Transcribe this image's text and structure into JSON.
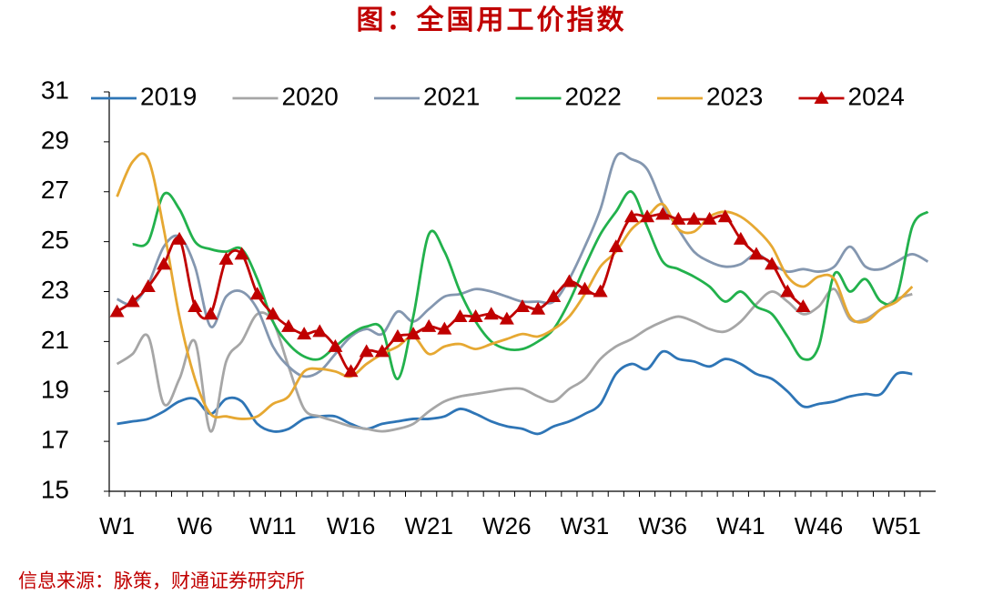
{
  "chart_data": {
    "type": "line",
    "title": "图：全国用工价指数",
    "source": "信息来源：脉策，财通证券研究所",
    "categories": [
      "W1",
      null,
      null,
      null,
      null,
      "W6",
      null,
      null,
      null,
      null,
      "W11",
      null,
      null,
      null,
      null,
      "W16",
      null,
      null,
      null,
      null,
      "W21",
      null,
      null,
      null,
      null,
      "W26",
      null,
      null,
      null,
      null,
      "W31",
      null,
      null,
      null,
      null,
      "W36",
      null,
      null,
      null,
      null,
      "W41",
      null,
      null,
      null,
      null,
      "W46",
      null,
      null,
      null,
      null,
      "W51",
      null,
      null
    ],
    "ylim": [
      15,
      31
    ],
    "yticks": [
      15,
      17,
      19,
      21,
      23,
      25,
      27,
      29,
      31
    ],
    "legend": "top",
    "series": [
      {
        "name": "2019",
        "color": "#2e75b6",
        "values": [
          17.7,
          17.8,
          17.9,
          18.2,
          18.6,
          18.7,
          18.1,
          18.7,
          18.6,
          17.7,
          17.4,
          17.5,
          17.9,
          18.0,
          18.0,
          17.7,
          17.5,
          17.7,
          17.8,
          17.9,
          17.9,
          18.0,
          18.3,
          18.1,
          17.8,
          17.6,
          17.5,
          17.3,
          17.6,
          17.8,
          18.1,
          18.5,
          19.7,
          20.1,
          19.9,
          20.6,
          20.3,
          20.2,
          20.0,
          20.3,
          20.1,
          19.7,
          19.5,
          19.0,
          18.4,
          18.5,
          18.6,
          18.8,
          18.9,
          18.9,
          19.7,
          19.7,
          null
        ]
      },
      {
        "name": "2020",
        "color": "#a6a6a6",
        "values": [
          20.1,
          20.5,
          21.2,
          18.5,
          19.5,
          21.0,
          17.4,
          20.2,
          21.0,
          22.1,
          21.8,
          20.0,
          18.3,
          18.0,
          17.8,
          17.6,
          17.5,
          17.4,
          17.5,
          17.7,
          18.2,
          18.6,
          18.8,
          18.9,
          19.0,
          19.1,
          19.1,
          18.8,
          18.6,
          19.1,
          19.5,
          20.3,
          20.8,
          21.1,
          21.5,
          21.8,
          22.0,
          21.8,
          21.5,
          21.4,
          21.8,
          22.5,
          23.0,
          22.6,
          22.1,
          22.4,
          23.1,
          21.9,
          21.9,
          22.3,
          22.7,
          22.9,
          null
        ]
      },
      {
        "name": "2021",
        "color": "#8497b0",
        "values": [
          22.7,
          22.5,
          23.3,
          24.8,
          25.2,
          24.0,
          21.6,
          22.8,
          23.0,
          22.3,
          20.8,
          20.0,
          19.6,
          19.8,
          20.5,
          21.2,
          21.5,
          21.3,
          22.2,
          21.8,
          22.3,
          22.8,
          22.9,
          23.1,
          23.0,
          22.8,
          22.6,
          22.6,
          22.6,
          23.5,
          24.8,
          26.3,
          28.4,
          28.3,
          27.9,
          26.5,
          25.5,
          24.6,
          24.2,
          24.0,
          24.1,
          24.5,
          24.1,
          23.8,
          23.9,
          23.8,
          24.0,
          24.8,
          24.0,
          23.9,
          24.2,
          24.5,
          24.2
        ]
      },
      {
        "name": "2022",
        "color": "#22b14c",
        "values": [
          null,
          24.9,
          25.0,
          26.9,
          26.3,
          25.0,
          24.7,
          24.6,
          24.7,
          23.5,
          21.8,
          20.9,
          20.4,
          20.3,
          20.8,
          21.3,
          21.6,
          21.5,
          19.5,
          22.0,
          25.3,
          24.6,
          23.0,
          21.8,
          21.0,
          20.7,
          20.7,
          21.0,
          21.5,
          22.6,
          24.0,
          25.3,
          26.2,
          27.0,
          25.6,
          24.2,
          23.9,
          23.6,
          23.2,
          22.6,
          23.0,
          22.4,
          22.1,
          21.2,
          20.3,
          20.8,
          23.7,
          23.0,
          23.5,
          22.6,
          22.8,
          25.6,
          26.2
        ]
      },
      {
        "name": "2023",
        "color": "#e6a832",
        "values": [
          26.8,
          28.2,
          28.3,
          25.5,
          22.0,
          19.5,
          18.1,
          18.0,
          17.9,
          18.0,
          18.5,
          18.8,
          19.8,
          19.9,
          19.8,
          19.6,
          20.1,
          20.5,
          20.8,
          21.2,
          20.5,
          20.8,
          20.9,
          20.7,
          20.9,
          21.1,
          21.3,
          21.2,
          21.5,
          22.0,
          22.9,
          24.0,
          24.6,
          25.5,
          26.0,
          26.5,
          25.5,
          25.4,
          26.0,
          26.2,
          26.0,
          25.5,
          24.8,
          23.6,
          23.2,
          23.6,
          23.5,
          22.0,
          21.8,
          22.3,
          22.6,
          23.2,
          null
        ]
      },
      {
        "name": "2024",
        "color": "#c00000",
        "marker": "triangle",
        "values": [
          22.2,
          22.6,
          23.2,
          24.1,
          25.1,
          22.4,
          22.1,
          24.3,
          24.5,
          22.9,
          22.1,
          21.6,
          21.3,
          21.4,
          20.8,
          19.8,
          20.6,
          20.6,
          21.2,
          21.3,
          21.6,
          21.5,
          22.0,
          22.0,
          22.1,
          21.9,
          22.4,
          22.3,
          22.8,
          23.4,
          23.1,
          23.0,
          24.8,
          26.0,
          26.0,
          26.1,
          25.9,
          25.9,
          25.9,
          26.0,
          25.1,
          24.5,
          24.1,
          23.0,
          22.4,
          null,
          null,
          null,
          null,
          null,
          null,
          null,
          null
        ]
      }
    ]
  }
}
